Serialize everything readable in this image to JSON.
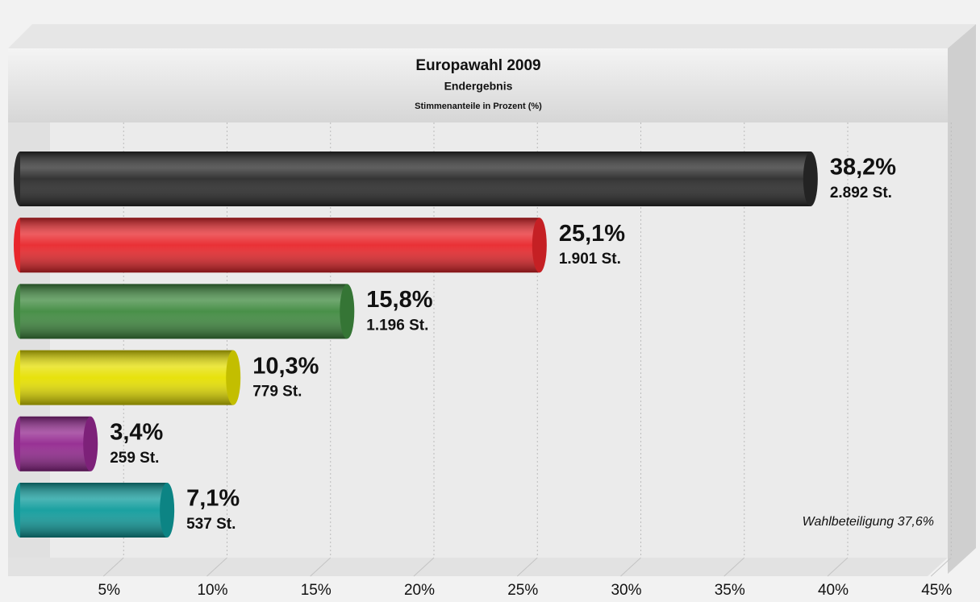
{
  "chart_data": {
    "type": "bar",
    "orientation": "horizontal",
    "title": "Europawahl 2009",
    "subtitle": "Endergebnis",
    "caption": "Stimmenanteile in Prozent (%)",
    "categories": [
      null,
      null,
      null,
      null,
      null,
      null
    ],
    "values": [
      38.2,
      25.1,
      15.8,
      10.3,
      3.4,
      7.1
    ],
    "value_labels": [
      "38,2%",
      "25,1%",
      "15,8%",
      "10,3%",
      "3,4%",
      "7,1%"
    ],
    "vote_labels": [
      "2.892 St.",
      "1.901 St.",
      "1.196 St.",
      "779 St.",
      "259 St.",
      "537 St."
    ],
    "colors": [
      "#2a2a2a",
      "#e8262b",
      "#3f8a3f",
      "#e6e000",
      "#93278f",
      "#0f9c9c"
    ],
    "xlim": [
      0,
      45
    ],
    "xticks": [
      {
        "value": 5,
        "label": "5%"
      },
      {
        "value": 10,
        "label": "10%"
      },
      {
        "value": 15,
        "label": "15%"
      },
      {
        "value": 20,
        "label": "20%"
      },
      {
        "value": 25,
        "label": "25%"
      },
      {
        "value": 30,
        "label": "30%"
      },
      {
        "value": 35,
        "label": "35%"
      },
      {
        "value": 40,
        "label": "40%"
      },
      {
        "value": 45,
        "label": "45%"
      }
    ],
    "grid": true,
    "annotation": "Wahlbeteiligung 37,6%"
  }
}
